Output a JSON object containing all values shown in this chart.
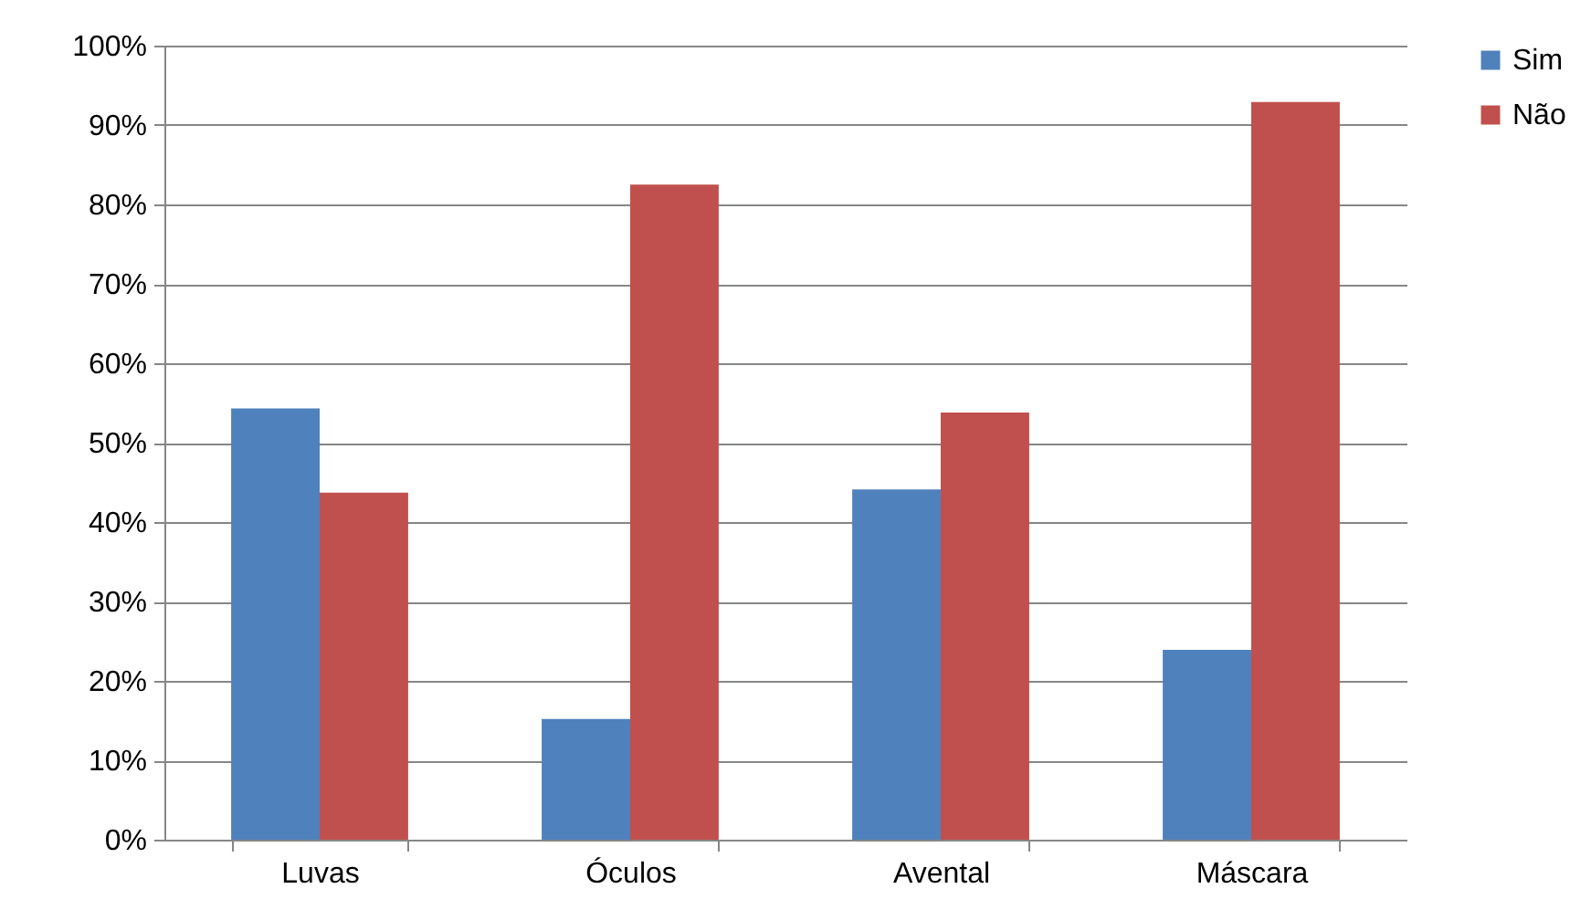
{
  "chart_data": {
    "type": "bar",
    "categories": [
      "Luvas",
      "Óculos",
      "Avental",
      "Máscara"
    ],
    "series": [
      {
        "name": "Sim",
        "color": "#4f81bd",
        "values": [
          54.3,
          15.2,
          44.1,
          23.9
        ]
      },
      {
        "name": "Não",
        "color": "#c0504d",
        "values": [
          43.7,
          82.5,
          53.8,
          92.9
        ]
      }
    ],
    "ylim": [
      0,
      100
    ],
    "yticks": [
      {
        "value": 0,
        "label": "0%"
      },
      {
        "value": 10,
        "label": "10%"
      },
      {
        "value": 20,
        "label": "20%"
      },
      {
        "value": 30,
        "label": "30%"
      },
      {
        "value": 40,
        "label": "40%"
      },
      {
        "value": 50,
        "label": "50%"
      },
      {
        "value": 60,
        "label": "60%"
      },
      {
        "value": 70,
        "label": "70%"
      },
      {
        "value": 80,
        "label": "80%"
      },
      {
        "value": 90,
        "label": "90%"
      },
      {
        "value": 100,
        "label": "100%"
      }
    ],
    "grid": "y",
    "legend": "right"
  }
}
